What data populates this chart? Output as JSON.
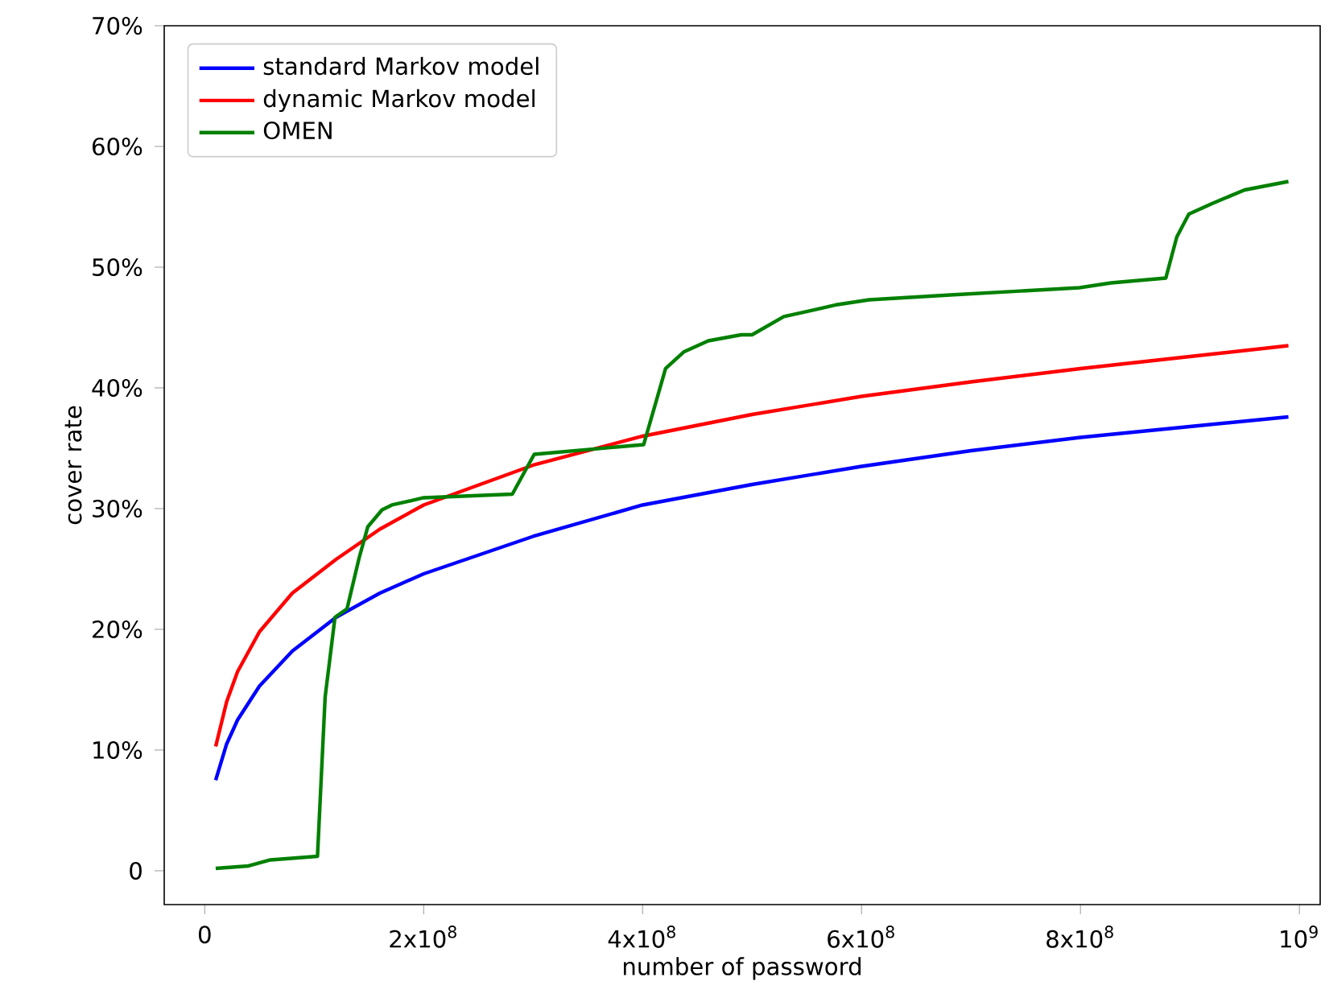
{
  "chart_data": {
    "type": "line",
    "xlabel": "number of password",
    "ylabel": "cover rate",
    "xlim": [
      -37000000,
      1019000000
    ],
    "ylim": [
      -2.8,
      70
    ],
    "xticks": [
      0,
      {
        "value": 200000000,
        "label": "2x10$^{8}$"
      },
      {
        "value": 400000000,
        "label": "4x10$^{8}$"
      },
      {
        "value": 600000000,
        "label": "6x10$^{8}$"
      },
      {
        "value": 800000000,
        "label": "8x10$^{8}$"
      },
      {
        "value": 1000000000,
        "label": "10$^{9}$"
      }
    ],
    "yticks": [
      0,
      {
        "value": 10,
        "label": "10%"
      },
      {
        "value": 20,
        "label": "20%"
      },
      {
        "value": 30,
        "label": "30%"
      },
      {
        "value": 40,
        "label": "40%"
      },
      {
        "value": 50,
        "label": "50%"
      },
      {
        "value": 60,
        "label": "60%"
      },
      {
        "value": 70,
        "label": "70%"
      }
    ],
    "grid": false,
    "legend": "top left",
    "marker": "none",
    "line_style": "solid",
    "series": [
      {
        "name": "standard Markov model",
        "color": "#0000ff",
        "x": [
          10000000,
          20000000,
          30000000,
          50000000,
          80000000,
          120000000,
          160000000,
          200000000,
          300000000,
          400000000,
          500000000,
          600000000,
          700000000,
          800000000,
          900000000,
          990000000
        ],
        "values": [
          7.5,
          10.5,
          12.5,
          15.3,
          18.2,
          21,
          23,
          24.6,
          27.7,
          30.3,
          32,
          33.5,
          34.8,
          35.9,
          36.8,
          37.6
        ]
      },
      {
        "name": "dynamic Markov model",
        "color": "#ff0000",
        "x": [
          10000000,
          20000000,
          30000000,
          50000000,
          80000000,
          120000000,
          160000000,
          200000000,
          300000000,
          400000000,
          500000000,
          600000000,
          700000000,
          800000000,
          900000000,
          990000000
        ],
        "values": [
          10.3,
          14,
          16.5,
          19.8,
          23,
          25.8,
          28.3,
          30.3,
          33.6,
          36,
          37.8,
          39.3,
          40.5,
          41.6,
          42.6,
          43.5
        ]
      },
      {
        "name": "OMEN",
        "color": "#008000",
        "x": [
          10000000,
          40000000,
          60000000,
          103000000,
          110000000,
          119000000,
          130000000,
          141000000,
          149000000,
          162000000,
          171000000,
          200000000,
          281000000,
          301000000,
          401000000,
          421000000,
          438000000,
          460000000,
          490000000,
          500000000,
          529000000,
          549000000,
          578000000,
          607000000,
          681000000,
          799000000,
          828000000,
          878000000,
          888000000,
          899000000,
          921000000,
          950000000,
          990000000
        ],
        "values": [
          0.2,
          0.4,
          0.9,
          1.2,
          14.4,
          21,
          21.7,
          25.9,
          28.5,
          29.9,
          30.3,
          30.9,
          31.2,
          34.5,
          35.3,
          41.6,
          43,
          43.9,
          44.4,
          44.4,
          45.9,
          46.3,
          46.9,
          47.3,
          47.7,
          48.3,
          48.7,
          49.1,
          52.5,
          54.4,
          55.3,
          56.4,
          57.1
        ]
      }
    ]
  }
}
